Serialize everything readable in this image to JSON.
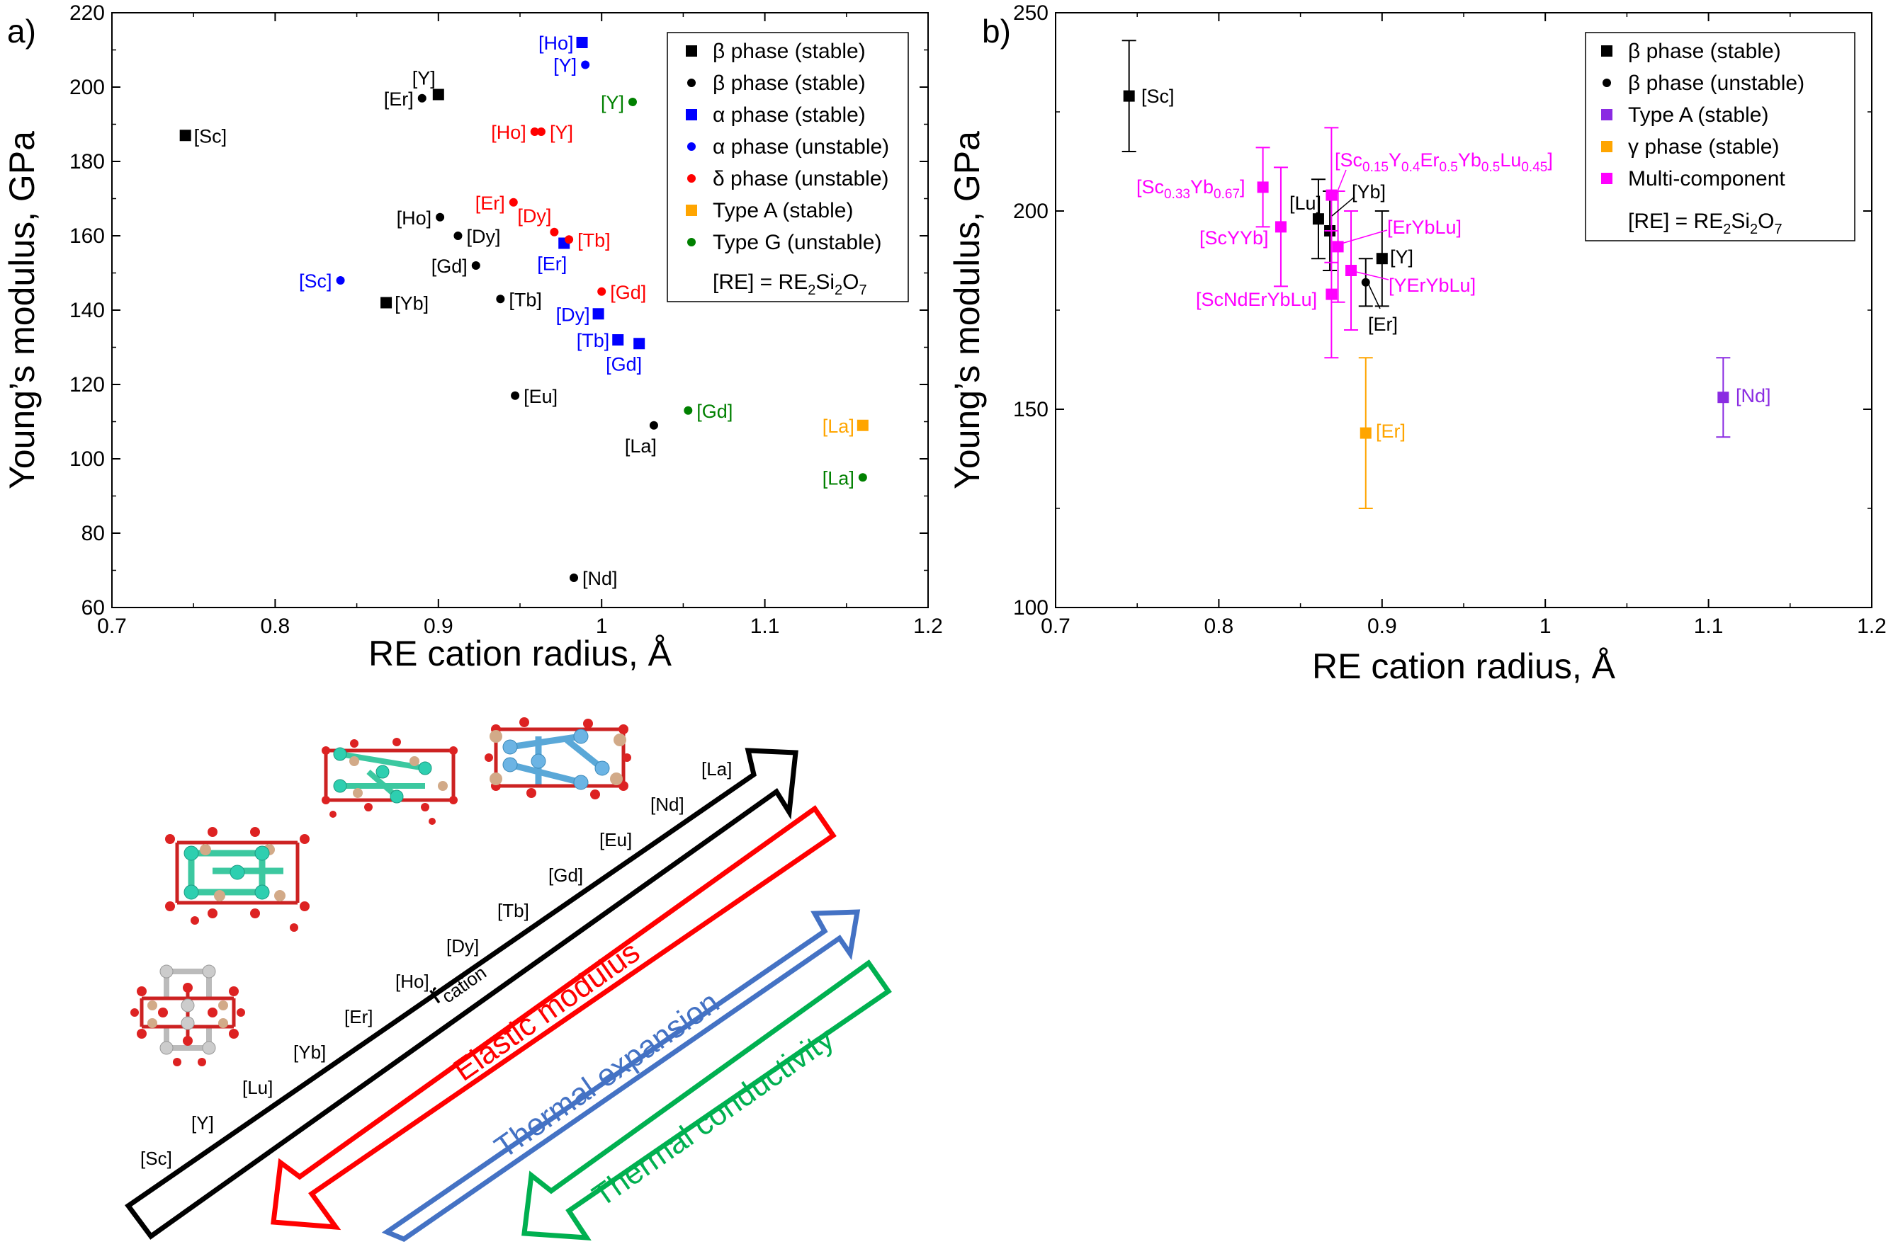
{
  "panel_labels": {
    "a": "a)",
    "b": "b)"
  },
  "colors": {
    "black": "#000000",
    "blue": "#0000ff",
    "red": "#ff0000",
    "orange": "#ffa500",
    "green": "#008000",
    "purple": "#8a2be2",
    "magenta": "#ff00ff",
    "arrow_black": "#000000",
    "arrow_red": "#ff0000",
    "arrow_blue": "#4472c4",
    "arrow_green": "#00b050"
  },
  "chart_data": [
    {
      "type": "scatter",
      "panel": "a",
      "xlabel": "RE cation radius, Å",
      "ylabel": "Young’s modulus, GPa",
      "xlim": [
        0.7,
        1.2
      ],
      "ylim": [
        60,
        220
      ],
      "xticks": [
        "0.7",
        "0.8",
        "0.9",
        "1",
        "1.1",
        "1.2"
      ],
      "yticks": [
        "60",
        "80",
        "100",
        "120",
        "140",
        "160",
        "180",
        "200",
        "220"
      ],
      "legend": {
        "position": "top-right",
        "entries": [
          {
            "text": "β phase (stable)",
            "marker": "square",
            "color": "#000000"
          },
          {
            "text": "β phase (stable)",
            "marker": "circle",
            "color": "#000000"
          },
          {
            "text": "α phase (stable)",
            "marker": "square",
            "color": "#0000ff"
          },
          {
            "text": "α phase (unstable)",
            "marker": "circle",
            "color": "#0000ff"
          },
          {
            "text": "δ phase (unstable)",
            "marker": "circle",
            "color": "#ff0000"
          },
          {
            "text": "Type A (stable)",
            "marker": "square",
            "color": "#ffa500"
          },
          {
            "text": "Type G (unstable)",
            "marker": "circle",
            "color": "#008000"
          }
        ],
        "note_pre": "[RE] = RE",
        "note_sub1": "2",
        "note_mid": "Si",
        "note_sub2": "2",
        "note_o": "O",
        "note_sub3": "7"
      },
      "points": [
        {
          "label": "[Sc]",
          "x": 0.745,
          "y": 187,
          "marker": "square",
          "color": "#000000",
          "lpos": "r"
        },
        {
          "label": "[Yb]",
          "x": 0.868,
          "y": 142,
          "marker": "square",
          "color": "#000000",
          "lpos": "r"
        },
        {
          "label": "[Y]",
          "x": 0.9,
          "y": 198,
          "marker": "square",
          "color": "#000000",
          "lpos": "tl"
        },
        {
          "label": "[Er]",
          "x": 0.89,
          "y": 197,
          "marker": "circle",
          "color": "#000000",
          "lpos": "l"
        },
        {
          "label": "[Ho]",
          "x": 0.901,
          "y": 165,
          "marker": "circle",
          "color": "#000000",
          "lpos": "l"
        },
        {
          "label": "[Dy]",
          "x": 0.912,
          "y": 160,
          "marker": "circle",
          "color": "#000000",
          "lpos": "r"
        },
        {
          "label": "[Gd]",
          "x": 0.923,
          "y": 152,
          "marker": "circle",
          "color": "#000000",
          "lpos": "l"
        },
        {
          "label": "[Tb]",
          "x": 0.938,
          "y": 143,
          "marker": "circle",
          "color": "#000000",
          "lpos": "r"
        },
        {
          "label": "[Eu]",
          "x": 0.947,
          "y": 117,
          "marker": "circle",
          "color": "#000000",
          "lpos": "r"
        },
        {
          "label": "[La]",
          "x": 1.032,
          "y": 109,
          "marker": "circle",
          "color": "#000000",
          "lpos": "bl"
        },
        {
          "label": "[Nd]",
          "x": 0.983,
          "y": 68,
          "marker": "circle",
          "color": "#000000",
          "lpos": "r"
        },
        {
          "label": "[Ho]",
          "x": 0.988,
          "y": 212,
          "marker": "square",
          "color": "#0000ff",
          "lpos": "l"
        },
        {
          "label": "[Er]",
          "x": 0.977,
          "y": 158,
          "marker": "square",
          "color": "#0000ff",
          "lpos": "bl"
        },
        {
          "label": "[Dy]",
          "x": 0.998,
          "y": 139,
          "marker": "square",
          "color": "#0000ff",
          "lpos": "l"
        },
        {
          "label": "[Tb]",
          "x": 1.01,
          "y": 132,
          "marker": "square",
          "color": "#0000ff",
          "lpos": "l"
        },
        {
          "label": "[Gd]",
          "x": 1.023,
          "y": 131,
          "marker": "square",
          "color": "#0000ff",
          "lpos": "bl"
        },
        {
          "label": "[Sc]",
          "x": 0.84,
          "y": 148,
          "marker": "circle",
          "color": "#0000ff",
          "lpos": "l"
        },
        {
          "label": "[Y]",
          "x": 0.99,
          "y": 206,
          "marker": "circle",
          "color": "#0000ff",
          "lpos": "l"
        },
        {
          "label": "[Ho]",
          "x": 0.959,
          "y": 188,
          "marker": "circle",
          "color": "#ff0000",
          "lpos": "l"
        },
        {
          "label": "[Y]",
          "x": 0.963,
          "y": 188,
          "marker": "circle",
          "color": "#ff0000",
          "lpos": "r"
        },
        {
          "label": "[Er]",
          "x": 0.946,
          "y": 169,
          "marker": "circle",
          "color": "#ff0000",
          "lpos": "l"
        },
        {
          "label": "[Dy]",
          "x": 0.971,
          "y": 161,
          "marker": "circle",
          "color": "#ff0000",
          "lpos": "tl"
        },
        {
          "label": "[Tb]",
          "x": 0.98,
          "y": 159,
          "marker": "circle",
          "color": "#ff0000",
          "lpos": "r"
        },
        {
          "label": "[Gd]",
          "x": 1.0,
          "y": 145,
          "marker": "circle",
          "color": "#ff0000",
          "lpos": "r"
        },
        {
          "label": "[La]",
          "x": 1.16,
          "y": 109,
          "marker": "square",
          "color": "#ffa500",
          "lpos": "l"
        },
        {
          "label": "[Y]",
          "x": 1.019,
          "y": 196,
          "marker": "circle",
          "color": "#008000",
          "lpos": "l"
        },
        {
          "label": "[Gd]",
          "x": 1.053,
          "y": 113,
          "marker": "circle",
          "color": "#008000",
          "lpos": "r"
        },
        {
          "label": "[La]",
          "x": 1.16,
          "y": 95,
          "marker": "circle",
          "color": "#008000",
          "lpos": "l"
        }
      ]
    },
    {
      "type": "scatter",
      "panel": "b",
      "xlabel": "RE cation radius, Å",
      "ylabel": "Young’s modulus, GPa",
      "xlim": [
        0.7,
        1.2
      ],
      "ylim": [
        100,
        250
      ],
      "xticks": [
        "0.7",
        "0.8",
        "0.9",
        "1",
        "1.1",
        "1.2"
      ],
      "yticks": [
        "100",
        "150",
        "200",
        "250"
      ],
      "legend": {
        "position": "top-right",
        "entries": [
          {
            "text": "β phase (stable)",
            "marker": "square",
            "color": "#000000"
          },
          {
            "text": "β phase (unstable)",
            "marker": "circle",
            "color": "#000000"
          },
          {
            "text": "Type A (stable)",
            "marker": "square",
            "color": "#8a2be2"
          },
          {
            "text": "γ phase (stable)",
            "marker": "square",
            "color": "#ffa500"
          },
          {
            "text": "Multi-component",
            "marker": "square",
            "color": "#ff00ff"
          }
        ],
        "note_pre": "[RE] = RE",
        "note_sub1": "2",
        "note_mid": "Si",
        "note_sub2": "2",
        "note_o": "O",
        "note_sub3": "7"
      },
      "points": [
        {
          "label": "[Sc]",
          "x": 0.745,
          "y": 229,
          "err": 14,
          "marker": "square",
          "color": "#000000"
        },
        {
          "label": "[Lu]",
          "x": 0.861,
          "y": 198,
          "err": 10,
          "marker": "square",
          "color": "#000000"
        },
        {
          "label": "[Yb]",
          "x": 0.868,
          "y": 195,
          "err": 10,
          "marker": "square",
          "color": "#000000"
        },
        {
          "label": "[Y]",
          "x": 0.9,
          "y": 188,
          "err": 12,
          "marker": "square",
          "color": "#000000"
        },
        {
          "label": "[Er]",
          "x": 0.89,
          "y": 182,
          "err": 6,
          "marker": "circle",
          "color": "#000000"
        },
        {
          "label": "[Nd]",
          "x": 1.109,
          "y": 153,
          "err": 10,
          "marker": "square",
          "color": "#8a2be2"
        },
        {
          "label": "[Er]",
          "x": 0.89,
          "y": 144,
          "err": 19,
          "marker": "square",
          "color": "#ffa500"
        },
        {
          "label": "[Sc0.33Yb0.67]",
          "x": 0.827,
          "y": 206,
          "err": 10,
          "marker": "square",
          "color": "#ff00ff"
        },
        {
          "label": "[ScYYb]",
          "x": 0.838,
          "y": 196,
          "err": 15,
          "marker": "square",
          "color": "#ff00ff"
        },
        {
          "label": "[Sc0.15Y0.4Er0.5Yb0.5Lu0.45]",
          "x": 0.869,
          "y": 204,
          "err": 17,
          "marker": "square",
          "color": "#ff00ff"
        },
        {
          "label": "[ErYbLu]",
          "x": 0.873,
          "y": 191,
          "err": 14,
          "marker": "square",
          "color": "#ff00ff"
        },
        {
          "label": "[YErYbLu]",
          "x": 0.881,
          "y": 185,
          "err": 15,
          "marker": "square",
          "color": "#ff00ff"
        },
        {
          "label": "[ScNdErYbLu]",
          "x": 0.869,
          "y": 179,
          "err": 16,
          "marker": "square",
          "color": "#ff00ff"
        }
      ]
    }
  ],
  "chart_b_labels": {
    "Sc": "[Sc]",
    "Lu": "[Lu]",
    "Yb": "[Yb]",
    "Y": "[Y]",
    "Er_b": "[Er]",
    "Nd": "[Nd]",
    "Er_g": "[Er]",
    "ScYb_a": "[Sc",
    "ScYb_s1": "0.33",
    "ScYb_b": "Yb",
    "ScYb_s2": "0.67",
    "ScYb_c": "]",
    "ScYYb": "[ScYYb]",
    "M_1": "[Sc",
    "M_s1": "0.15",
    "M_2": "Y",
    "M_s2": "0.4",
    "M_3": "Er",
    "M_s3": "0.5",
    "M_4": "Yb",
    "M_s4": "0.5",
    "M_5": "Lu",
    "M_s5": "0.45",
    "M_6": "]",
    "ErYbLu": "[ErYbLu]",
    "YErYbLu": "[YErYbLu]",
    "ScNdErYbLu": "[ScNdErYbLu]"
  },
  "schematic": {
    "series_labels": [
      "[Sc]",
      "[Y]",
      "[Lu]",
      "[Yb]",
      "[Er]",
      "[Ho]",
      "[Dy]",
      "[Tb]",
      "[Gd]",
      "[Eu]",
      "[Nd]",
      "[La]"
    ],
    "r_main": "r",
    "r_sub": "cation",
    "arrow_red": "Elastic modulus",
    "arrow_blue": "Thermal expansion",
    "arrow_green": "Thermal conductivity"
  }
}
